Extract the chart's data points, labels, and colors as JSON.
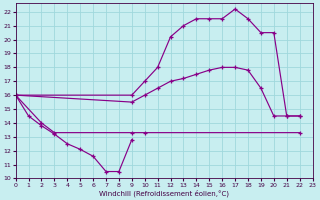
{
  "bg_color": "#c8eef0",
  "grid_color": "#a0d8dc",
  "line_color": "#880088",
  "xlabel": "Windchill (Refroidissement éolien,°C)",
  "xlim": [
    0,
    23
  ],
  "ylim": [
    10,
    22.6
  ],
  "yticks": [
    10,
    11,
    12,
    13,
    14,
    15,
    16,
    17,
    18,
    19,
    20,
    21,
    22
  ],
  "xticks": [
    0,
    1,
    2,
    3,
    4,
    5,
    6,
    7,
    8,
    9,
    10,
    11,
    12,
    13,
    14,
    15,
    16,
    17,
    18,
    19,
    20,
    21,
    22,
    23
  ],
  "curves": [
    {
      "x": [
        0,
        1,
        2,
        3,
        4,
        5,
        6,
        7,
        8,
        9
      ],
      "y": [
        16.0,
        14.5,
        13.8,
        13.2,
        12.5,
        12.1,
        11.6,
        10.5,
        10.5,
        12.8
      ]
    },
    {
      "x": [
        0,
        2,
        3,
        9,
        10,
        22
      ],
      "y": [
        16.0,
        14.0,
        13.3,
        13.3,
        13.3,
        13.3
      ]
    },
    {
      "x": [
        0,
        9,
        10,
        11,
        12,
        13,
        14,
        15,
        16,
        17,
        18,
        19,
        20,
        21,
        22
      ],
      "y": [
        16.0,
        15.5,
        16.0,
        16.5,
        17.0,
        17.2,
        17.5,
        17.8,
        18.0,
        18.0,
        17.8,
        16.5,
        14.5,
        14.5,
        14.5
      ]
    },
    {
      "x": [
        0,
        9,
        10,
        11,
        12,
        13,
        14,
        15,
        16,
        17,
        18,
        19,
        20,
        21,
        22
      ],
      "y": [
        16.0,
        16.0,
        17.0,
        18.0,
        20.2,
        21.0,
        21.5,
        21.5,
        21.5,
        22.2,
        21.5,
        20.5,
        20.5,
        14.5,
        14.5
      ]
    }
  ]
}
